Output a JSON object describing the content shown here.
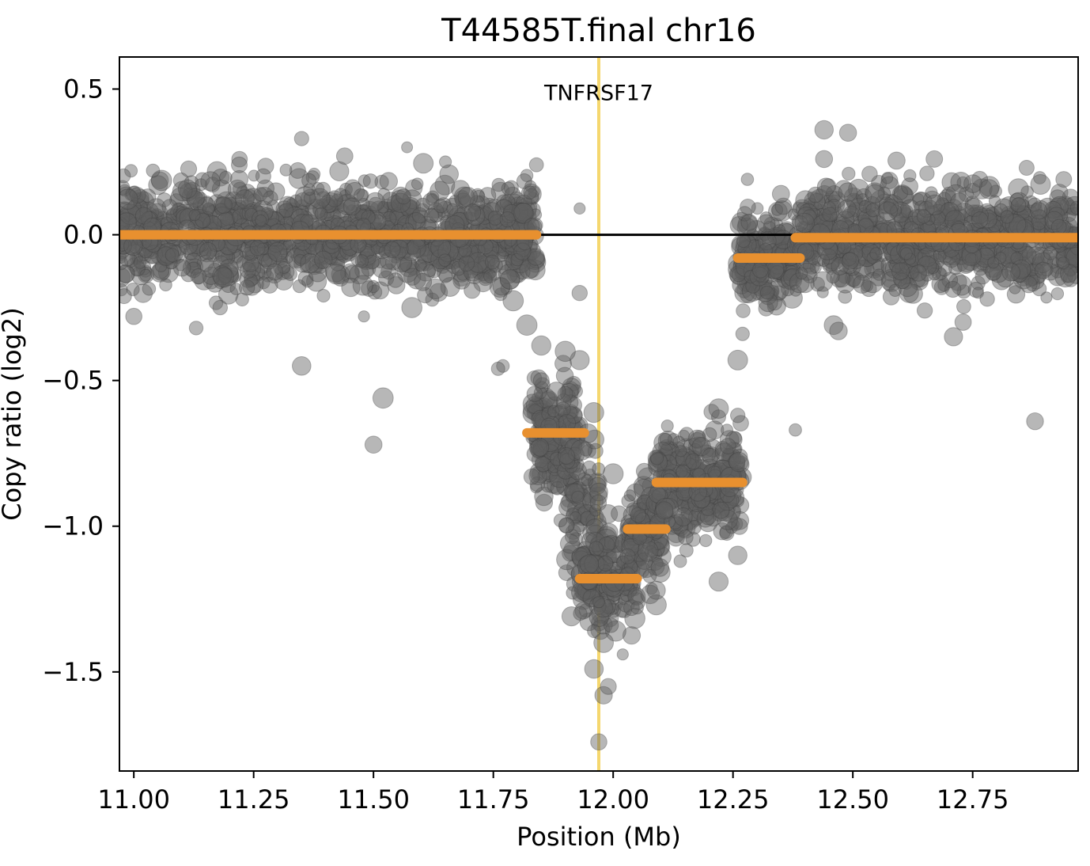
{
  "chart_data": {
    "type": "scatter",
    "title": "T44585T.final chr16",
    "xlabel": "Position (Mb)",
    "ylabel": "Copy ratio (log2)",
    "xlim": [
      10.97,
      12.97
    ],
    "ylim": [
      -1.84,
      0.61
    ],
    "x_ticks": [
      11.0,
      11.25,
      11.5,
      11.75,
      12.0,
      12.25,
      12.5,
      12.75
    ],
    "x_tick_labels": [
      "11.00",
      "11.25",
      "11.50",
      "11.75",
      "12.00",
      "12.25",
      "12.50",
      "12.75"
    ],
    "y_ticks": [
      0.5,
      0.0,
      -0.5,
      -1.0,
      -1.5
    ],
    "y_tick_labels": [
      "0.5",
      "0.0",
      "−0.5",
      "−1.0",
      "−1.5"
    ],
    "grid": false,
    "colors": {
      "points": "#606060",
      "segments": "#e8902f",
      "baseline": "#000000",
      "gene_marker": "#f5d76e"
    },
    "baseline": {
      "y": 0.0,
      "x": [
        11.84,
        12.38
      ]
    },
    "gene_marker": {
      "name": "TNFRSF17",
      "x": 11.97
    },
    "segments": [
      {
        "x": [
          10.97,
          11.84
        ],
        "y": 0.0
      },
      {
        "x": [
          11.82,
          11.94
        ],
        "y": -0.68
      },
      {
        "x": [
          11.93,
          12.05
        ],
        "y": -1.18
      },
      {
        "x": [
          12.03,
          12.11
        ],
        "y": -1.01
      },
      {
        "x": [
          12.09,
          12.27
        ],
        "y": -0.85
      },
      {
        "x": [
          12.26,
          12.39
        ],
        "y": -0.08
      },
      {
        "x": [
          12.38,
          12.97
        ],
        "y": -0.01
      }
    ],
    "points_visible": [
      {
        "x": 11.35,
        "y": 0.33
      },
      {
        "x": 11.57,
        "y": 0.3
      },
      {
        "x": 11.44,
        "y": 0.27
      },
      {
        "x": 11.04,
        "y": 0.22
      },
      {
        "x": 11.22,
        "y": 0.24
      },
      {
        "x": 11.65,
        "y": 0.25
      },
      {
        "x": 11.84,
        "y": 0.24
      },
      {
        "x": 11.93,
        "y": 0.09
      },
      {
        "x": 11.93,
        "y": -0.2
      },
      {
        "x": 11.82,
        "y": -0.31
      },
      {
        "x": 11.85,
        "y": -0.38
      },
      {
        "x": 11.85,
        "y": -0.5
      },
      {
        "x": 11.77,
        "y": -0.45
      },
      {
        "x": 11.35,
        "y": -0.45
      },
      {
        "x": 11.52,
        "y": -0.56
      },
      {
        "x": 11.5,
        "y": -0.72
      },
      {
        "x": 11.18,
        "y": -0.25
      },
      {
        "x": 11.13,
        "y": -0.32
      },
      {
        "x": 11.0,
        "y": -0.28
      },
      {
        "x": 11.58,
        "y": -0.25
      },
      {
        "x": 11.48,
        "y": -0.28
      },
      {
        "x": 11.93,
        "y": -0.43
      },
      {
        "x": 11.9,
        "y": -0.4
      },
      {
        "x": 11.83,
        "y": -0.83
      },
      {
        "x": 11.89,
        "y": -0.98
      },
      {
        "x": 11.91,
        "y": -1.06
      },
      {
        "x": 11.95,
        "y": -1.13
      },
      {
        "x": 12.0,
        "y": -0.82
      },
      {
        "x": 11.97,
        "y": -1.26
      },
      {
        "x": 11.96,
        "y": -1.36
      },
      {
        "x": 11.96,
        "y": -1.49
      },
      {
        "x": 11.98,
        "y": -1.58
      },
      {
        "x": 11.99,
        "y": -1.55
      },
      {
        "x": 12.02,
        "y": -1.44
      },
      {
        "x": 11.98,
        "y": -1.4
      },
      {
        "x": 11.97,
        "y": -1.74
      },
      {
        "x": 12.05,
        "y": -1.28
      },
      {
        "x": 12.09,
        "y": -1.27
      },
      {
        "x": 12.09,
        "y": -1.22
      },
      {
        "x": 12.14,
        "y": -1.12
      },
      {
        "x": 12.22,
        "y": -1.19
      },
      {
        "x": 12.26,
        "y": -1.1
      },
      {
        "x": 12.26,
        "y": -0.62
      },
      {
        "x": 12.26,
        "y": -0.43
      },
      {
        "x": 12.27,
        "y": -0.34
      },
      {
        "x": 12.28,
        "y": 0.19
      },
      {
        "x": 12.35,
        "y": 0.14
      },
      {
        "x": 12.44,
        "y": 0.36
      },
      {
        "x": 12.49,
        "y": 0.35
      },
      {
        "x": 12.44,
        "y": 0.26
      },
      {
        "x": 12.67,
        "y": 0.26
      },
      {
        "x": 12.71,
        "y": -0.35
      },
      {
        "x": 12.73,
        "y": -0.3
      },
      {
        "x": 12.65,
        "y": -0.26
      },
      {
        "x": 12.46,
        "y": -0.31
      },
      {
        "x": 12.47,
        "y": -0.33
      },
      {
        "x": 12.88,
        "y": -0.64
      },
      {
        "x": 12.38,
        "y": -0.67
      },
      {
        "x": 11.76,
        "y": -0.46
      },
      {
        "x": 12.94,
        "y": 0.19
      }
    ]
  }
}
